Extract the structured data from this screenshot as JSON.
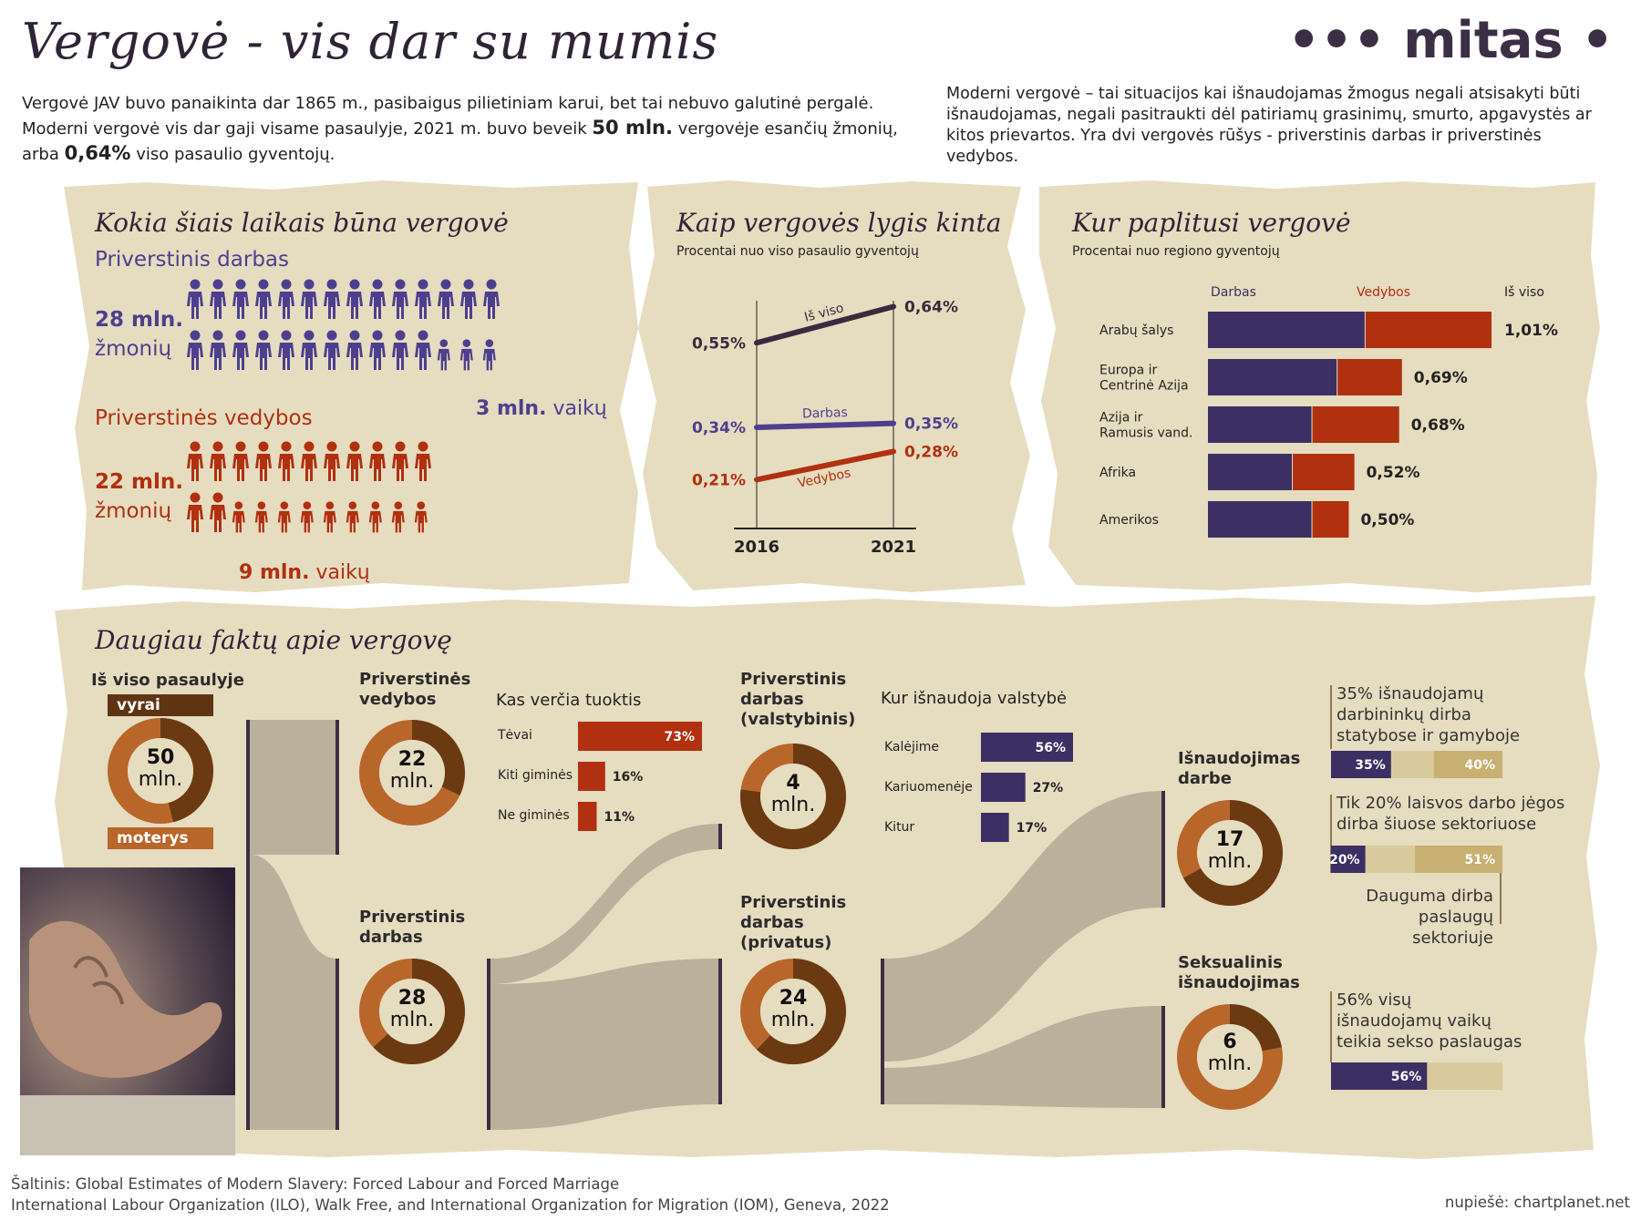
{
  "header": {
    "title": "Vergovė - vis dar su mumis",
    "logo": "••• mitas •",
    "intro_left_1": "Vergovė JAV buvo panaikinta dar 1865 m., pasibaigus pilietiniam karui, bet tai nebuvo galutinė pergalė.",
    "intro_left_2a": "Moderni vergovė vis dar gaji visame pasaulyje, 2021 m. buvo beveik ",
    "intro_left_2b": "50 mln.",
    "intro_left_2c": " vergovėje esančių žmonių,",
    "intro_left_3a": "arba ",
    "intro_left_3b": "0,64%",
    "intro_left_3c": " viso pasaulio gyventojų.",
    "intro_right": "Moderni vergovė – tai situacijos kai išnaudojamas žmogus negali atsisakyti būti išnaudojamas, negali pasitraukti dėl patiriamų grasinimų, smurto, apgavystės ar kitos prievartos. Yra dvi vergovės rūšys - priverstinis darbas ir priverstinės vedybos."
  },
  "colors": {
    "purple": "#4d3f8f",
    "darkpurple": "#3b2f63",
    "red": "#b0300f",
    "brown": "#6b3a12",
    "orange": "#b8662a",
    "beige": "#e6dcc0",
    "flow": "#bbb09c",
    "tan": "#c8b072"
  },
  "panel1": {
    "title": "Kokia šiais laikais būna vergovė",
    "labor_title": "Priverstinis darbas",
    "labor_count": "28 mln.",
    "labor_unit": "žmonių",
    "labor_children_num": "3 mln.",
    "labor_children_unit": "vaikų",
    "marriage_title": "Priverstinės vedybos",
    "marriage_count": "22 mln.",
    "marriage_unit": "žmonių",
    "marriage_children_num": "9 mln.",
    "marriage_children_unit": "vaikų"
  },
  "panel2": {
    "title": "Kaip vergovės lygis kinta",
    "subtitle": "Procentai nuo viso pasaulio gyventojų"
  },
  "panel3": {
    "title": "Kur paplitusi vergovė",
    "subtitle": "Procentai nuo regiono gyventojų"
  },
  "chart_data": [
    {
      "type": "pictogram",
      "series": [
        {
          "name": "Priverstinis darbas",
          "total": 28,
          "children": 3,
          "unit": "mln."
        },
        {
          "name": "Priverstinės vedybos",
          "total": 22,
          "children": 9,
          "unit": "mln."
        }
      ]
    },
    {
      "type": "line",
      "x": [
        2016,
        2021
      ],
      "series": [
        {
          "name": "Iš viso",
          "values": [
            0.55,
            0.64
          ],
          "labels": [
            "0,55%",
            "0,64%"
          ],
          "color": "#3a2a3e"
        },
        {
          "name": "Darbas",
          "values": [
            0.34,
            0.35
          ],
          "labels": [
            "0,34%",
            "0,35%"
          ],
          "color": "#4d3f8f"
        },
        {
          "name": "Vedybos",
          "values": [
            0.21,
            0.28
          ],
          "labels": [
            "0,21%",
            "0,28%"
          ],
          "color": "#b0300f"
        }
      ],
      "xlabels": [
        "2016",
        "2021"
      ],
      "ylim": [
        0.1,
        0.7
      ]
    },
    {
      "type": "bar",
      "stacked": true,
      "headers": [
        "Darbas",
        "Vedybos",
        "Iš viso"
      ],
      "categories": [
        "Arabų šalys",
        "Europa ir Centrinė Azija",
        "Azija ir Ramusis vand.",
        "Afrika",
        "Amerikos"
      ],
      "category_lines": [
        [
          "Arabų šalys"
        ],
        [
          "Europa ir",
          "Centrinė Azija"
        ],
        [
          "Azija ir",
          "Ramusis vand."
        ],
        [
          "Afrika"
        ],
        [
          "Amerikos"
        ]
      ],
      "series": [
        {
          "name": "Darbas",
          "values": [
            0.56,
            0.46,
            0.37,
            0.3,
            0.37
          ]
        },
        {
          "name": "Vedybos",
          "values": [
            0.45,
            0.23,
            0.31,
            0.22,
            0.13
          ]
        }
      ],
      "totals": [
        "1,01%",
        "0,69%",
        "0,68%",
        "0,52%",
        "0,50%"
      ],
      "xlim": [
        0,
        1.01
      ]
    },
    {
      "type": "bar",
      "title": "Kas verčia tuoktis",
      "categories": [
        "Tėvai",
        "Kiti giminės",
        "Ne giminės"
      ],
      "values": [
        73,
        16,
        11
      ],
      "labels": [
        "73%",
        "16%",
        "11%"
      ]
    },
    {
      "type": "bar",
      "title": "Kur išnaudoja valstybė",
      "categories": [
        "Kalėjime",
        "Kariuomenėje",
        "Kitur"
      ],
      "values": [
        56,
        27,
        17
      ],
      "labels": [
        "56%",
        "27%",
        "17%"
      ]
    }
  ],
  "panel4": {
    "title": "Daugiau faktų apie vergovę",
    "world_label": "Iš viso pasaulyje",
    "men": "vyrai",
    "women": "moterys",
    "world_num": "50",
    "mln": "mln.",
    "world_male_share": 0.46,
    "marriage_label_1": "Priverstinės",
    "marriage_label_2": "vedybos",
    "marriage_num": "22",
    "marriage_male_share": 0.32,
    "labor_label_1": "Priverstinis",
    "labor_label_2": "darbas",
    "labor_num": "28",
    "labor_male_share": 0.63,
    "state_label_1": "Priverstinis",
    "state_label_2": "darbas",
    "state_label_3": "(valstybinis)",
    "state_num": "4",
    "state_male_share": 0.77,
    "private_label_1": "Priverstinis",
    "private_label_2": "darbas",
    "private_label_3": "(privatus)",
    "private_num": "24",
    "private_male_share": 0.62,
    "labor_ex_label_1": "Išnaudojimas",
    "labor_ex_label_2": "darbe",
    "labor_ex_num": "17",
    "labor_ex_male_share": 0.67,
    "sex_label_1": "Seksualinis",
    "sex_label_2": "išnaudojimas",
    "sex_num": "6",
    "sex_male_share": 0.22,
    "fact1_lines": [
      "35% išnaudojamų",
      "darbininkų dirba",
      "statybose ir gamyboje"
    ],
    "fact1_a": "35%",
    "fact1_b": "40%",
    "fact1_a_val": 35,
    "fact1_b_val": 40,
    "fact2_lines": [
      "Tik 20% laisvos darbo jėgos",
      "dirba šiuose sektoriuose"
    ],
    "fact2_a": "20%",
    "fact2_b": "51%",
    "fact2_a_val": 20,
    "fact2_b_val": 51,
    "fact3_lines": [
      "Dauguma dirba",
      "paslaugų sektoriuje"
    ],
    "fact4_lines": [
      "56% visų",
      "išnaudojamų vaikų",
      "teikia sekso paslaugas"
    ],
    "fact4_a": "56%",
    "fact4_a_val": 56
  },
  "footer": {
    "source_1": "Šaltinis: Global Estimates of Modern Slavery: Forced Labour and Forced Marriage",
    "source_2": "International Labour Organization (ILO), Walk Free, and International Organization for Migration (IOM), Geneva, 2022",
    "credit": "nupiešė: chartplanet.net"
  }
}
